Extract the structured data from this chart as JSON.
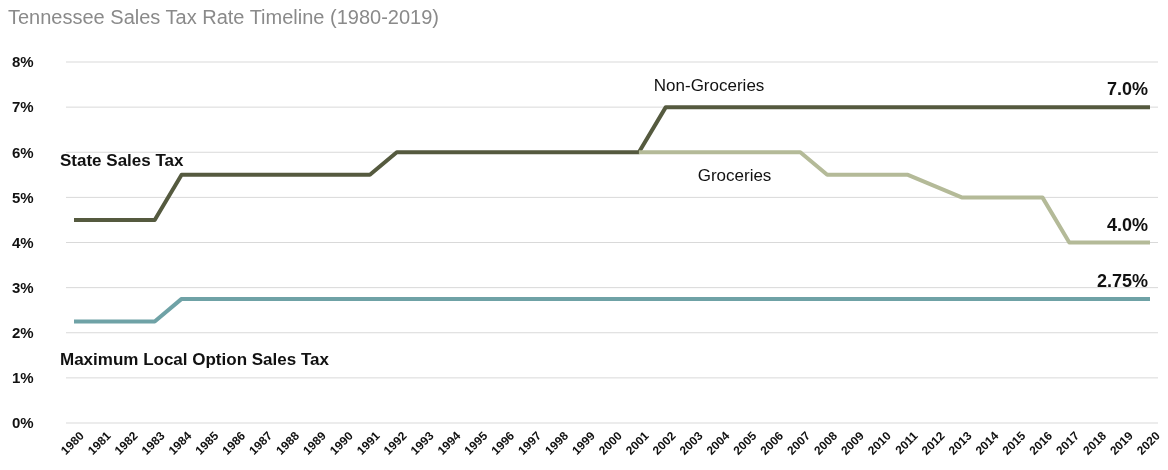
{
  "chart_data": {
    "type": "line",
    "title": "Tennessee Sales Tax Rate Timeline (1980-2019)",
    "categories": [
      "1980",
      "1981",
      "1982",
      "1983",
      "1984",
      "1985",
      "1986",
      "1987",
      "1988",
      "1989",
      "1990",
      "1991",
      "1992",
      "1993",
      "1994",
      "1995",
      "1996",
      "1997",
      "1998",
      "1999",
      "2000",
      "2001",
      "2002",
      "2003",
      "2004",
      "2005",
      "2006",
      "2007",
      "2008",
      "2009",
      "2010",
      "2011",
      "2012",
      "2013",
      "2014",
      "2015",
      "2016",
      "2017",
      "2018",
      "2019",
      "2020"
    ],
    "series": [
      {
        "name": "Non-Groceries",
        "color": "#555a3f",
        "values": [
          4.5,
          4.5,
          4.5,
          4.5,
          5.5,
          5.5,
          5.5,
          5.5,
          5.5,
          5.5,
          5.5,
          5.5,
          6,
          6,
          6,
          6,
          6,
          6,
          6,
          6,
          6,
          6,
          7,
          7,
          7,
          7,
          7,
          7,
          7,
          7,
          7,
          7,
          7,
          7,
          7,
          7,
          7,
          7,
          7,
          7,
          7
        ],
        "value_labels": [
          null,
          null,
          null,
          null,
          null,
          null,
          null,
          null,
          null,
          null,
          null,
          null,
          null,
          null,
          null,
          null,
          null,
          null,
          null,
          null,
          null,
          null,
          null,
          null,
          null,
          null,
          null,
          null,
          null,
          null,
          null,
          null,
          null,
          null,
          null,
          null,
          null,
          null,
          null,
          null,
          "7.0%"
        ]
      },
      {
        "name": "Groceries",
        "color": "#b4ba98",
        "values": [
          null,
          null,
          null,
          null,
          null,
          null,
          null,
          null,
          null,
          null,
          null,
          null,
          null,
          null,
          null,
          null,
          null,
          null,
          null,
          null,
          null,
          6,
          6,
          6,
          6,
          6,
          6,
          6,
          5.5,
          5.5,
          5.5,
          5.5,
          5.25,
          5,
          5,
          5,
          5,
          4,
          4,
          4,
          4
        ],
        "value_labels": [
          null,
          null,
          null,
          null,
          null,
          null,
          null,
          null,
          null,
          null,
          null,
          null,
          null,
          null,
          null,
          null,
          null,
          null,
          null,
          null,
          null,
          null,
          null,
          null,
          null,
          null,
          null,
          null,
          null,
          null,
          null,
          null,
          null,
          null,
          null,
          null,
          null,
          null,
          null,
          null,
          "4.0%"
        ]
      },
      {
        "name": "Maximum Local Option Sales Tax",
        "color": "#6fa2a6",
        "values": [
          2.25,
          2.25,
          2.25,
          2.25,
          2.75,
          2.75,
          2.75,
          2.75,
          2.75,
          2.75,
          2.75,
          2.75,
          2.75,
          2.75,
          2.75,
          2.75,
          2.75,
          2.75,
          2.75,
          2.75,
          2.75,
          2.75,
          2.75,
          2.75,
          2.75,
          2.75,
          2.75,
          2.75,
          2.75,
          2.75,
          2.75,
          2.75,
          2.75,
          2.75,
          2.75,
          2.75,
          2.75,
          2.75,
          2.75,
          2.75,
          2.75
        ],
        "value_labels": [
          null,
          null,
          null,
          null,
          null,
          null,
          null,
          null,
          null,
          null,
          null,
          null,
          null,
          null,
          null,
          null,
          null,
          null,
          null,
          null,
          null,
          null,
          null,
          null,
          null,
          null,
          null,
          null,
          null,
          null,
          null,
          null,
          null,
          null,
          null,
          null,
          null,
          null,
          null,
          null,
          "2.75%"
        ]
      }
    ],
    "annotations": [
      "State Sales Tax"
    ],
    "ylim": [
      0,
      8
    ],
    "yticks": [
      {
        "value": 0,
        "label": "0%"
      },
      {
        "value": 1,
        "label": "1%"
      },
      {
        "value": 2,
        "label": "2%"
      },
      {
        "value": 3,
        "label": "3%"
      },
      {
        "value": 4,
        "label": "4%"
      },
      {
        "value": 5,
        "label": "5%"
      },
      {
        "value": 6,
        "label": "6%"
      },
      {
        "value": 7,
        "label": "7%"
      },
      {
        "value": 8,
        "label": "8%"
      }
    ],
    "grid": "y",
    "line_style": "solid"
  }
}
